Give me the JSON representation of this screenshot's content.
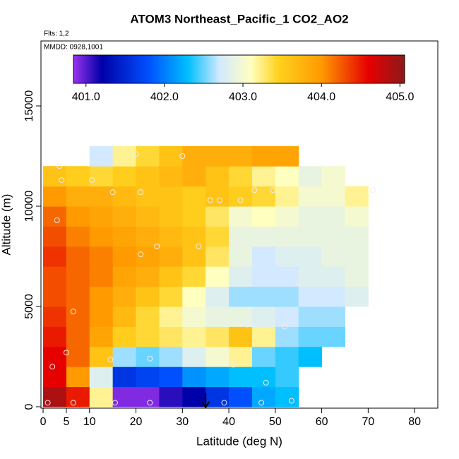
{
  "chart_data": {
    "type": "heatmap",
    "title": "ATOM3 Northeast_Pacific_1 CO2_AO2",
    "subtitle_lines": [
      "Flts: 1,2",
      "MMDD: 0928,1001"
    ],
    "xlabel": "Latitude (deg N)",
    "ylabel": "Altitude (m)",
    "xlim": [
      -0.46,
      85
    ],
    "xticks": [
      0,
      5,
      10,
      20,
      30,
      40,
      50,
      60,
      70,
      80
    ],
    "ylim": [
      -70,
      18240
    ],
    "yticks": [
      0,
      5000,
      10000,
      15000
    ],
    "xbins": [
      0,
      5,
      10,
      15,
      20,
      25,
      30,
      35,
      40,
      45,
      50,
      55,
      60,
      65,
      70,
      75
    ],
    "ybins": [
      0,
      1000,
      2000,
      3000,
      4000,
      5000,
      6000,
      7000,
      8000,
      9000,
      10000,
      11000,
      12000,
      13000
    ],
    "values": [
      [
        404.9,
        404.5,
        403.2,
        400.9,
        400.9,
        401.1,
        401.2,
        401.6,
        401.8,
        402.2,
        402.3,
        null,
        null,
        null,
        null
      ],
      [
        404.6,
        404.0,
        402.8,
        401.6,
        401.7,
        401.8,
        402.1,
        402.2,
        402.3,
        402.3,
        402.4,
        null,
        null,
        null,
        null
      ],
      [
        404.6,
        404.2,
        403.6,
        402.6,
        402.5,
        402.6,
        402.8,
        403.0,
        403.2,
        402.5,
        402.4,
        402.3,
        null,
        null,
        null
      ],
      [
        404.5,
        404.2,
        403.9,
        403.5,
        403.4,
        403.3,
        403.2,
        403.3,
        403.6,
        403.2,
        402.6,
        402.5,
        402.5,
        null,
        null
      ],
      [
        404.4,
        404.2,
        404.0,
        403.7,
        403.4,
        403.2,
        403.0,
        402.9,
        402.9,
        402.8,
        402.7,
        402.6,
        402.6,
        null,
        null
      ],
      [
        404.3,
        404.2,
        404.0,
        403.8,
        403.6,
        403.4,
        403.1,
        402.8,
        402.6,
        402.6,
        402.6,
        402.7,
        402.7,
        402.8,
        null
      ],
      [
        404.3,
        404.2,
        404.1,
        403.9,
        403.8,
        403.6,
        403.4,
        403.1,
        402.8,
        402.7,
        402.7,
        402.8,
        402.8,
        402.9,
        null
      ],
      [
        404.4,
        404.2,
        404.1,
        404.0,
        403.9,
        403.8,
        403.6,
        403.3,
        402.9,
        402.7,
        402.8,
        402.8,
        402.9,
        402.9,
        null
      ],
      [
        404.3,
        404.1,
        404.0,
        403.9,
        403.8,
        403.7,
        403.6,
        403.4,
        402.9,
        402.9,
        402.9,
        402.9,
        402.9,
        402.9,
        null
      ],
      [
        404.2,
        404.0,
        403.9,
        403.8,
        403.7,
        403.6,
        403.5,
        403.3,
        403.0,
        403.1,
        403.0,
        402.9,
        402.9,
        403.0,
        null
      ],
      [
        404.0,
        403.8,
        403.8,
        403.7,
        403.6,
        403.6,
        403.5,
        403.6,
        403.5,
        403.4,
        403.2,
        403.0,
        403.0,
        403.2,
        null
      ],
      [
        403.6,
        403.5,
        403.4,
        403.5,
        403.6,
        403.7,
        403.8,
        403.6,
        403.4,
        403.2,
        403.1,
        402.9,
        403.0,
        null,
        null
      ],
      [
        null,
        null,
        402.7,
        403.2,
        403.4,
        403.6,
        403.8,
        403.8,
        403.8,
        403.9,
        403.9,
        null,
        null,
        null,
        null
      ]
    ],
    "points": {
      "x": [
        1,
        6.5,
        15.5,
        23,
        39,
        47,
        53.5,
        2,
        5,
        14.5,
        23,
        48,
        41,
        52,
        44,
        39,
        6.5,
        55,
        21,
        24.5,
        33.5,
        42,
        3,
        38,
        15,
        21,
        45.5,
        49.5,
        58,
        71,
        4,
        10.5,
        3.5,
        20,
        30,
        36,
        42.5
      ],
      "y": [
        200,
        200,
        200,
        200,
        200,
        200,
        300,
        2000,
        2700,
        2350,
        2400,
        1200,
        2100,
        4000,
        4100,
        4800,
        4750,
        6200,
        7600,
        8000,
        8000,
        8000,
        9300,
        10300,
        10700,
        10700,
        10800,
        10800,
        11200,
        10800,
        11300,
        11300,
        12000,
        12600,
        12500,
        10300,
        10300
      ]
    },
    "markers": [
      {
        "x": 35
      }
    ],
    "colorbar": {
      "lim": [
        400.84,
        405.06
      ],
      "ticks": [
        {
          "value": 401,
          "label": "401.0"
        },
        {
          "value": 402,
          "label": "402.0"
        },
        {
          "value": 403,
          "label": "403.0"
        },
        {
          "value": 404,
          "label": "404.0"
        },
        {
          "value": 405,
          "label": "405.0"
        }
      ],
      "stops": [
        {
          "value": 400.84,
          "color": "#9932ee"
        },
        {
          "value": 401.2,
          "color": "#0000a8"
        },
        {
          "value": 401.8,
          "color": "#0050ff"
        },
        {
          "value": 402.3,
          "color": "#00bfff"
        },
        {
          "value": 402.7,
          "color": "#d2e9ff"
        },
        {
          "value": 403.1,
          "color": "#ffffc0"
        },
        {
          "value": 403.45,
          "color": "#ffd21e"
        },
        {
          "value": 404.0,
          "color": "#ff9a00"
        },
        {
          "value": 404.6,
          "color": "#e60000"
        },
        {
          "value": 405.06,
          "color": "#8b1a1a"
        }
      ]
    }
  }
}
